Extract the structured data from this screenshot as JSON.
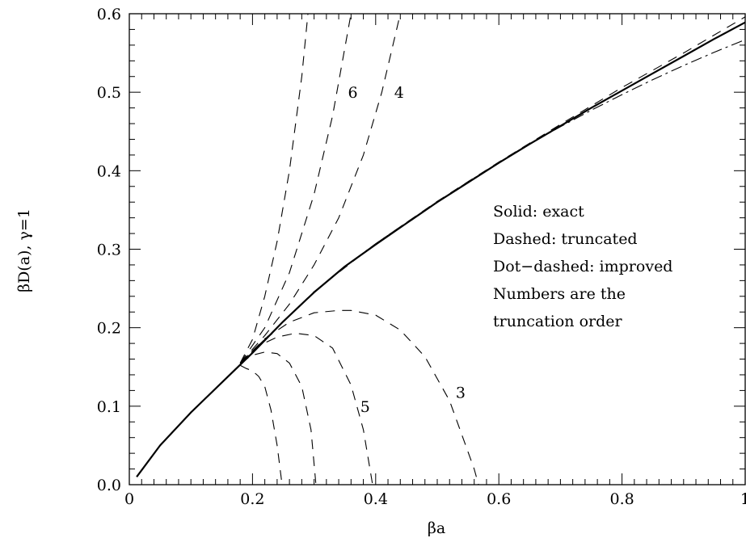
{
  "chart_data": {
    "type": "line",
    "xlabel": "βa",
    "ylabel": "βD(a), γ=1",
    "xlim": [
      0,
      1
    ],
    "ylim": [
      0,
      0.6
    ],
    "x_ticks": [
      "0",
      "0.2",
      "0.4",
      "0.6",
      "0.8",
      "1"
    ],
    "y_ticks": [
      "0.0",
      "0.1",
      "0.2",
      "0.3",
      "0.4",
      "0.5",
      "0.6"
    ],
    "grid": false,
    "legend_text": [
      "Solid: exact",
      "Dashed:  truncated",
      "Dot−dashed: improved",
      "Numbers are the",
      "truncation order"
    ],
    "series": [
      {
        "style": "solid",
        "x": [
          0.012,
          0.05,
          0.1,
          0.15,
          0.2,
          0.25,
          0.3,
          0.35,
          0.4,
          0.45,
          0.5,
          0.55,
          0.6,
          0.65,
          0.7,
          0.75,
          0.8,
          0.85,
          0.9,
          0.95,
          1.0
        ],
        "y": [
          0.01,
          0.05,
          0.092,
          0.13,
          0.168,
          0.208,
          0.245,
          0.278,
          0.306,
          0.333,
          0.36,
          0.385,
          0.41,
          0.434,
          0.457,
          0.48,
          0.502,
          0.524,
          0.546,
          0.568,
          0.589
        ]
      },
      {
        "style": "dotdash",
        "x": [
          0.18,
          0.25,
          0.3,
          0.35,
          0.4,
          0.45,
          0.5,
          0.55,
          0.6,
          0.65,
          0.7,
          0.75,
          0.8,
          0.85,
          0.9,
          0.95,
          1.0
        ],
        "y": [
          0.155,
          0.208,
          0.245,
          0.278,
          0.307,
          0.334,
          0.36,
          0.386,
          0.41,
          0.434,
          0.456,
          0.477,
          0.497,
          0.516,
          0.534,
          0.551,
          0.567
        ]
      },
      {
        "style": "dashed",
        "x": [
          0.18,
          0.3,
          0.4,
          0.5,
          0.6,
          0.7,
          0.8,
          0.9,
          1.0
        ],
        "y": [
          0.154,
          0.246,
          0.307,
          0.361,
          0.411,
          0.459,
          0.506,
          0.55,
          0.596
        ]
      },
      {
        "name": "3",
        "style": "dashed",
        "x": [
          0.18,
          0.22,
          0.26,
          0.3,
          0.34,
          0.36,
          0.4,
          0.44,
          0.48,
          0.52,
          0.56,
          0.567
        ],
        "y": [
          0.155,
          0.186,
          0.207,
          0.219,
          0.222,
          0.222,
          0.216,
          0.197,
          0.163,
          0.107,
          0.02,
          0.0
        ]
      },
      {
        "name": "5",
        "style": "dashed",
        "x": [
          0.18,
          0.21,
          0.24,
          0.27,
          0.3,
          0.33,
          0.36,
          0.38,
          0.395
        ],
        "y": [
          0.155,
          0.177,
          0.188,
          0.193,
          0.19,
          0.174,
          0.127,
          0.07,
          0.0
        ]
      },
      {
        "style": "dashed",
        "x": [
          0.18,
          0.2,
          0.22,
          0.24,
          0.26,
          0.28,
          0.295,
          0.303
        ],
        "y": [
          0.155,
          0.165,
          0.169,
          0.167,
          0.155,
          0.125,
          0.07,
          0.0
        ]
      },
      {
        "style": "dashed",
        "x": [
          0.18,
          0.19,
          0.2,
          0.21,
          0.22,
          0.23,
          0.24,
          0.248
        ],
        "y": [
          0.152,
          0.148,
          0.145,
          0.138,
          0.125,
          0.095,
          0.05,
          0.0
        ]
      },
      {
        "name": "4",
        "style": "dashed",
        "x": [
          0.18,
          0.22,
          0.26,
          0.3,
          0.34,
          0.38,
          0.41,
          0.44
        ],
        "y": [
          0.155,
          0.19,
          0.23,
          0.28,
          0.34,
          0.42,
          0.5,
          0.6
        ]
      },
      {
        "name": "6",
        "style": "dashed",
        "x": [
          0.18,
          0.22,
          0.26,
          0.3,
          0.33,
          0.36
        ],
        "y": [
          0.155,
          0.2,
          0.27,
          0.37,
          0.47,
          0.6
        ]
      },
      {
        "style": "dashed",
        "x": [
          0.18,
          0.2,
          0.22,
          0.24,
          0.26,
          0.28,
          0.29
        ],
        "y": [
          0.155,
          0.185,
          0.24,
          0.31,
          0.4,
          0.52,
          0.6
        ]
      }
    ],
    "annotations": [
      {
        "text": "6",
        "x": 0.363,
        "y": 0.5
      },
      {
        "text": "4",
        "x": 0.438,
        "y": 0.5
      },
      {
        "text": "5",
        "x": 0.383,
        "y": 0.1
      },
      {
        "text": "3",
        "x": 0.538,
        "y": 0.118
      }
    ]
  }
}
